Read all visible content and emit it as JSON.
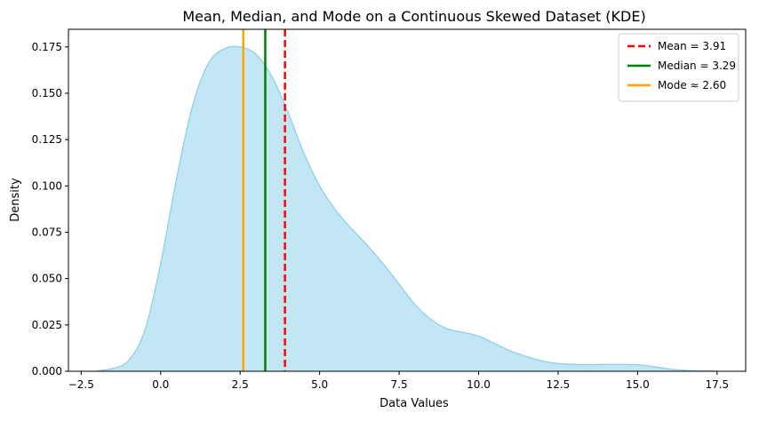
{
  "chart_data": {
    "type": "area",
    "title": "Mean, Median, and Mode on a Continuous Skewed Dataset (KDE)",
    "xlabel": "Data Values",
    "ylabel": "Density",
    "xlim": [
      -2.9,
      18.4
    ],
    "ylim": [
      0,
      0.1845
    ],
    "xticks": [
      {
        "value": -2.5,
        "label": "−2.5"
      },
      {
        "value": 0,
        "label": "0.0"
      },
      {
        "value": 2.5,
        "label": "2.5"
      },
      {
        "value": 5,
        "label": "5.0"
      },
      {
        "value": 7.5,
        "label": "7.5"
      },
      {
        "value": 10,
        "label": "10.0"
      },
      {
        "value": 12.5,
        "label": "12.5"
      },
      {
        "value": 15,
        "label": "15.0"
      },
      {
        "value": 17.5,
        "label": "17.5"
      }
    ],
    "yticks": [
      {
        "value": 0,
        "label": "0.000"
      },
      {
        "value": 0.025,
        "label": "0.025"
      },
      {
        "value": 0.05,
        "label": "0.050"
      },
      {
        "value": 0.075,
        "label": "0.075"
      },
      {
        "value": 0.1,
        "label": "0.100"
      },
      {
        "value": 0.125,
        "label": "0.125"
      },
      {
        "value": 0.15,
        "label": "0.150"
      },
      {
        "value": 0.175,
        "label": "0.175"
      }
    ],
    "grid": false,
    "legend_position": "top-right",
    "kde": {
      "fill_color": "#87ceeb",
      "fill_opacity": 0.5,
      "line_color": "#87ceeb",
      "x": [
        -2.0,
        -1.5,
        -1.0,
        -0.5,
        0.0,
        0.5,
        1.0,
        1.5,
        2.0,
        2.5,
        3.0,
        3.5,
        4.0,
        4.5,
        5.0,
        5.5,
        6.0,
        6.5,
        7.0,
        7.5,
        8.0,
        8.5,
        9.0,
        9.5,
        10.0,
        10.5,
        11.0,
        11.5,
        12.0,
        12.5,
        13.0,
        13.5,
        14.0,
        14.5,
        15.0,
        15.5,
        16.0,
        16.5,
        17.0,
        17.5
      ],
      "y": [
        0.0003,
        0.0015,
        0.006,
        0.022,
        0.058,
        0.104,
        0.143,
        0.166,
        0.174,
        0.175,
        0.171,
        0.159,
        0.14,
        0.118,
        0.1,
        0.087,
        0.077,
        0.068,
        0.058,
        0.047,
        0.036,
        0.028,
        0.023,
        0.021,
        0.019,
        0.015,
        0.011,
        0.008,
        0.0055,
        0.0042,
        0.0037,
        0.0036,
        0.0037,
        0.0037,
        0.0035,
        0.0025,
        0.0012,
        0.0005,
        0.0002,
        0.0001
      ]
    },
    "vlines": [
      {
        "label": "Mean = 3.91",
        "x": 3.91,
        "color": "#ff0000",
        "style": "dashed"
      },
      {
        "label": "Median = 3.29",
        "x": 3.29,
        "color": "#008000",
        "style": "solid"
      },
      {
        "label": "Mode ≈ 2.60",
        "x": 2.6,
        "color": "#ffa500",
        "style": "solid"
      }
    ]
  }
}
